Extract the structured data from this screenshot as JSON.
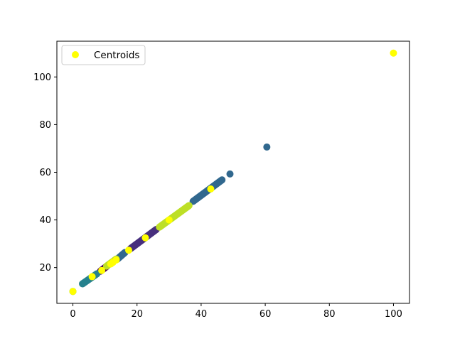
{
  "chart_data": {
    "type": "scatter",
    "title": "",
    "xlabel": "",
    "ylabel": "",
    "xlim": [
      -5,
      105
    ],
    "ylim": [
      5,
      115
    ],
    "xticks": [
      0,
      20,
      40,
      60,
      80,
      100
    ],
    "yticks": [
      20,
      40,
      60,
      80,
      100
    ],
    "grid": false,
    "legend": {
      "placement": "top-left",
      "entries": [
        "Centroids"
      ]
    },
    "clusters": [
      {
        "color": "#440154",
        "segments": [
          [
            8.6,
            18.5,
            10.6,
            20.6
          ]
        ]
      },
      {
        "color": "#472f7d",
        "segments": [
          [
            18.0,
            28.0,
            26.0,
            36.0
          ]
        ]
      },
      {
        "color": "#31688e",
        "segments": [
          [
            13.8,
            23.5,
            16.2,
            26.3
          ],
          [
            37.5,
            47.8,
            46.5,
            56.8
          ]
        ],
        "points": [
          [
            49.0,
            59.3
          ],
          [
            60.5,
            70.6
          ]
        ]
      },
      {
        "color": "#26828e",
        "segments": [
          [
            3.0,
            13.2,
            7.5,
            17.4
          ]
        ]
      },
      {
        "color": "#1fa088",
        "segments": [
          [
            0.0,
            10.0,
            0.0,
            10.0
          ]
        ]
      },
      {
        "color": "#bddf26",
        "segments": [
          [
            27.0,
            37.0,
            36.2,
            46.0
          ],
          [
            10.5,
            20.6,
            13.5,
            23.6
          ]
        ]
      }
    ],
    "series": [
      {
        "name": "Centroids",
        "color": "#ffff00",
        "points": [
          [
            0.0,
            10.0
          ],
          [
            6.0,
            16.2
          ],
          [
            9.0,
            18.8
          ],
          [
            11.8,
            21.5
          ],
          [
            12.5,
            22.2
          ],
          [
            13.5,
            23.2
          ],
          [
            17.4,
            27.3
          ],
          [
            22.6,
            32.5
          ],
          [
            30.0,
            40.0
          ],
          [
            43.0,
            53.0
          ],
          [
            100.0,
            110.0
          ]
        ]
      }
    ]
  }
}
